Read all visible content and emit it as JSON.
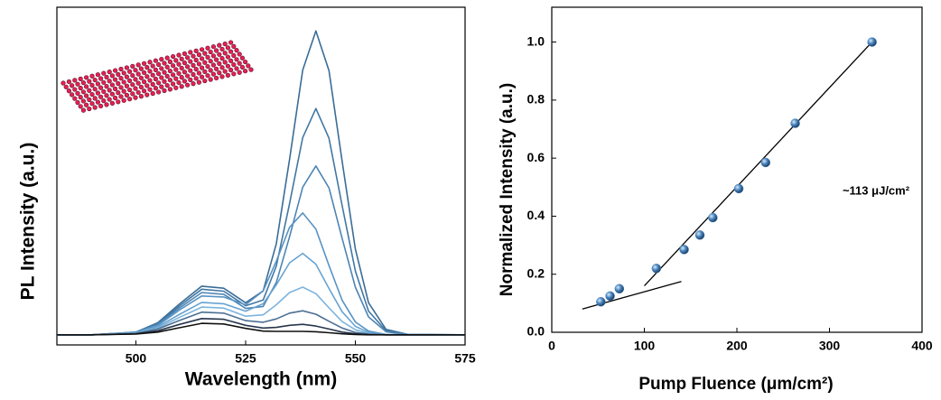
{
  "chart_data": [
    {
      "type": "line",
      "x_label": "Wavelength (nm)",
      "y_label": "PL Intensity (a.u.)",
      "x": [
        482,
        490,
        500,
        505,
        510,
        515,
        520,
        525,
        529,
        532,
        535,
        538,
        541,
        544,
        547,
        550,
        553,
        557,
        562,
        575
      ],
      "xlim": [
        482,
        575
      ],
      "xticks": [
        500,
        525,
        550,
        575
      ],
      "ylim": [
        0,
        100
      ],
      "series": [
        {
          "color": "#3a6d97",
          "values": [
            3,
            3,
            3.8,
            6.6,
            12.2,
            17.4,
            16.8,
            12.5,
            16.0,
            30.0,
            54.9,
            81.4,
            93.0,
            81.2,
            54.3,
            28.4,
            12.5,
            4.6,
            3.1,
            3
          ]
        },
        {
          "color": "#4277a3",
          "values": [
            3,
            3,
            3.8,
            6.3,
            11.6,
            16.5,
            15.9,
            11.6,
            13.3,
            23.4,
            41.8,
            61.4,
            70.0,
            61.2,
            41.2,
            21.9,
            10.0,
            4.2,
            3.1,
            3
          ]
        },
        {
          "color": "#4d85b4",
          "values": [
            3,
            3,
            3.7,
            6.1,
            11.0,
            15.5,
            15.0,
            10.8,
            11.4,
            18.5,
            32.0,
            46.7,
            53.0,
            46.5,
            31.5,
            17.1,
            8.3,
            3.9,
            3.1,
            3
          ]
        },
        {
          "color": "#5893c3",
          "values": [
            3,
            3,
            3.7,
            5.8,
            10.4,
            14.5,
            14.2,
            11.9,
            16.0,
            24.8,
            34.8,
            39.1,
            34.3,
            23.5,
            13.2,
            6.8,
            4.1,
            3.1,
            3,
            3
          ]
        },
        {
          "color": "#68a3d1",
          "values": [
            3,
            3,
            3.6,
            5.4,
            9.1,
            12.6,
            12.2,
            10.0,
            12.2,
            17.8,
            24.3,
            27.1,
            23.9,
            16.7,
            9.8,
            5.5,
            3.7,
            3.1,
            3,
            3
          ]
        },
        {
          "color": "#7db4de",
          "values": [
            3,
            3,
            3.5,
            5.0,
            8.2,
            11.2,
            10.9,
            8.5,
            8.9,
            11.9,
            15.5,
            17.1,
            15.2,
            11.0,
            6.9,
            4.5,
            3.4,
            3,
            3,
            3
          ]
        },
        {
          "color": "#4c6f93",
          "values": [
            3,
            3,
            3.4,
            4.7,
            7.3,
            9.7,
            9.4,
            7.2,
            6.7,
            7.7,
            9.4,
            10.1,
            9.1,
            7.0,
            5.0,
            3.7,
            3.2,
            3,
            3,
            3
          ]
        },
        {
          "color": "#27364d",
          "values": [
            3,
            3,
            3.3,
            4.2,
            6.1,
            7.8,
            7.6,
            5.8,
            5.0,
            5.2,
            5.8,
            6.1,
            5.6,
            4.7,
            3.8,
            3.3,
            3.1,
            3,
            3,
            3
          ]
        },
        {
          "color": "#111111",
          "values": [
            3,
            3,
            3.2,
            3.8,
            5.1,
            6.4,
            6.2,
            4.9,
            4.1,
            4.0,
            4.0,
            4.0,
            3.9,
            3.6,
            3.3,
            3.1,
            3,
            3,
            3,
            3
          ]
        }
      ]
    },
    {
      "type": "scatter",
      "x_label": "Pump Fluence (μm/cm²)",
      "y_label": "Normalized Intensity (a.u.)",
      "annotation": "~113 μJ/cm²",
      "x": [
        53,
        63,
        73,
        113,
        143,
        160,
        174,
        202,
        231,
        263,
        346
      ],
      "values": [
        0.105,
        0.125,
        0.15,
        0.22,
        0.285,
        0.335,
        0.395,
        0.495,
        0.585,
        0.72,
        1.0
      ],
      "color": "#4a86c0",
      "fits": [
        {
          "color": "#000000",
          "x": [
            33,
            140
          ],
          "values": [
            0.08,
            0.175
          ]
        },
        {
          "color": "#000000",
          "x": [
            100,
            346
          ],
          "values": [
            0.16,
            1.0
          ]
        }
      ],
      "xlim": [
        0,
        400
      ],
      "xticks": [
        0,
        100,
        200,
        300,
        400
      ],
      "ylim": [
        0,
        1.12
      ],
      "yticks": [
        {
          "value": 0,
          "label": "0.0"
        },
        0.2,
        0.4,
        0.6,
        0.8,
        {
          "value": 1,
          "label": "1.0"
        }
      ]
    }
  ]
}
